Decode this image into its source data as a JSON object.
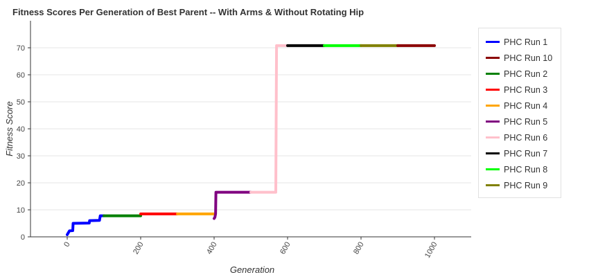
{
  "chart_data": {
    "type": "line",
    "title": "Fitness Scores Per Generation of Best Parent -- With Arms & Without Rotating Hip",
    "xlabel": "Generation",
    "ylabel": "Fitness Score",
    "xlim": [
      -100,
      1100
    ],
    "ylim": [
      0,
      80
    ],
    "x_ticks": [
      0,
      200,
      400,
      600,
      800,
      1000
    ],
    "y_ticks": [
      0,
      10,
      20,
      30,
      40,
      50,
      60,
      70
    ],
    "grid": "horizontal",
    "legend_position": "right",
    "series": [
      {
        "name": "PHC Run 1",
        "color": "#0000ff",
        "points": [
          [
            0,
            0.8
          ],
          [
            3,
            1.5
          ],
          [
            6,
            2.2
          ],
          [
            15,
            2.3
          ],
          [
            16,
            5.0
          ],
          [
            60,
            5.1
          ],
          [
            61,
            6.0
          ],
          [
            88,
            6.1
          ],
          [
            90,
            7.8
          ],
          [
            100,
            7.8
          ]
        ]
      },
      {
        "name": "PHC Run 10",
        "color": "#8b0000",
        "points": [
          [
            900,
            70.8
          ],
          [
            1000,
            70.8
          ]
        ]
      },
      {
        "name": "PHC Run 2",
        "color": "#008000",
        "points": [
          [
            100,
            7.8
          ],
          [
            200,
            7.8
          ]
        ]
      },
      {
        "name": "PHC Run 3",
        "color": "#ff0000",
        "points": [
          [
            200,
            8.5
          ],
          [
            300,
            8.5
          ]
        ]
      },
      {
        "name": "PHC Run 4",
        "color": "#ffa500",
        "points": [
          [
            300,
            8.5
          ],
          [
            400,
            8.5
          ]
        ]
      },
      {
        "name": "PHC Run 5",
        "color": "#800080",
        "points": [
          [
            400,
            6.8
          ],
          [
            402,
            7.2
          ],
          [
            404,
            8.5
          ],
          [
            405,
            16.5
          ],
          [
            500,
            16.5
          ]
        ]
      },
      {
        "name": "PHC Run 6",
        "color": "#ffc0cb",
        "points": [
          [
            500,
            16.5
          ],
          [
            568,
            16.5
          ],
          [
            570,
            70.8
          ],
          [
            600,
            70.8
          ]
        ]
      },
      {
        "name": "PHC Run 7",
        "color": "#000000",
        "points": [
          [
            600,
            70.8
          ],
          [
            700,
            70.8
          ]
        ]
      },
      {
        "name": "PHC Run 8",
        "color": "#00ff00",
        "points": [
          [
            700,
            70.8
          ],
          [
            800,
            70.8
          ]
        ]
      },
      {
        "name": "PHC Run 9",
        "color": "#808000",
        "points": [
          [
            800,
            70.8
          ],
          [
            900,
            70.8
          ]
        ]
      }
    ]
  }
}
